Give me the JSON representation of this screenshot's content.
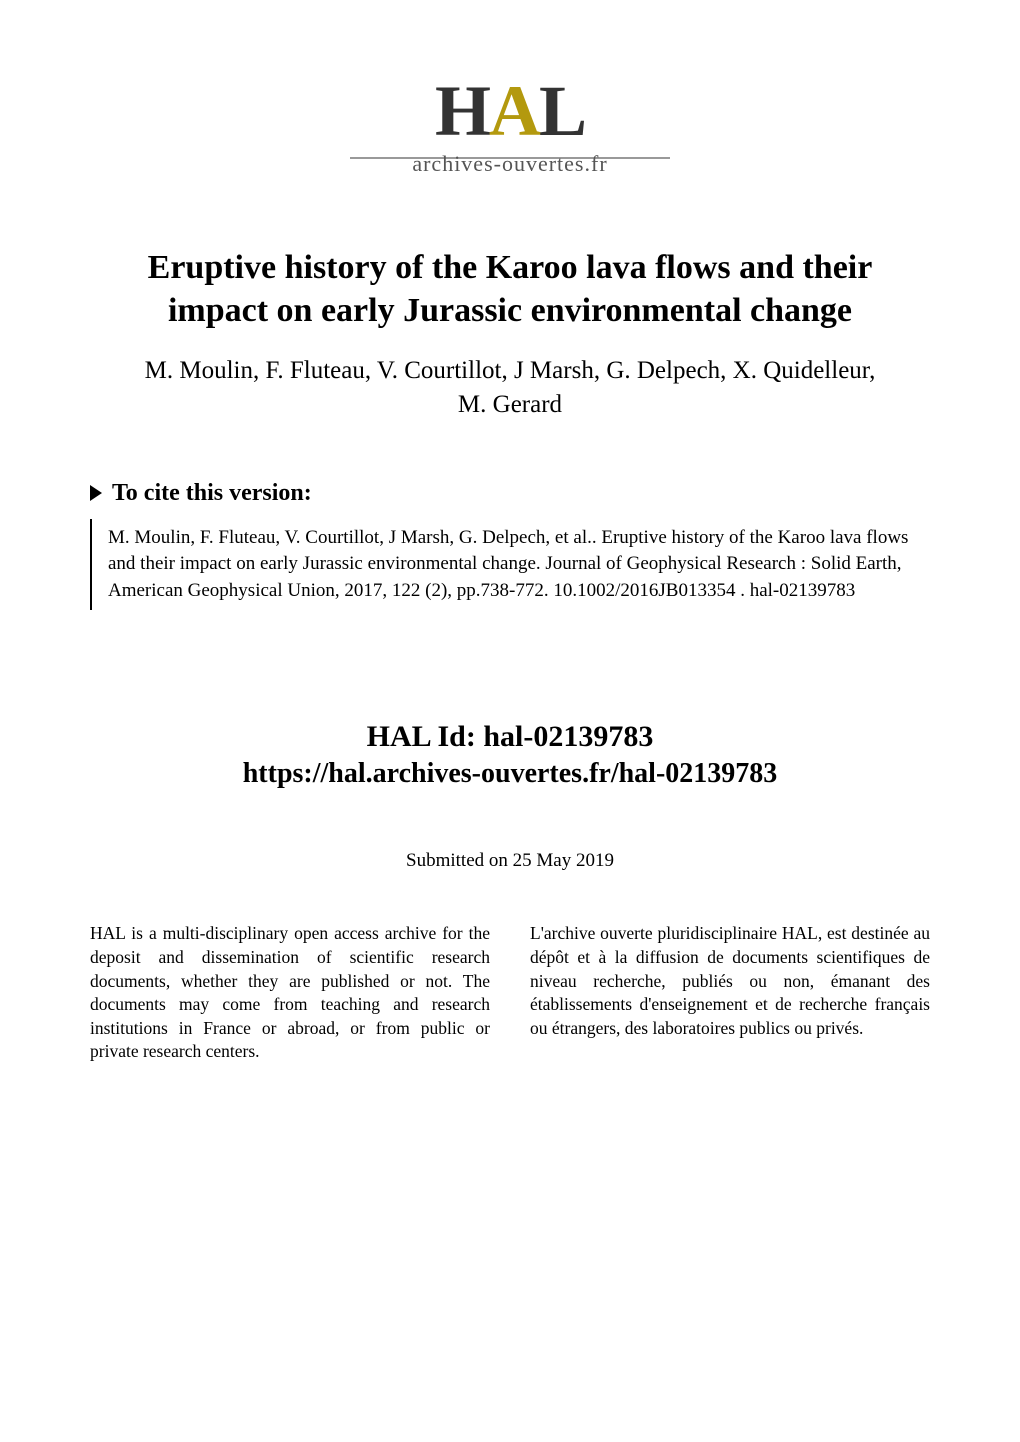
{
  "logo": {
    "text_prefix": "H",
    "text_accent": "A",
    "text_suffix": "L",
    "subtitle": "archives-ouvertes.fr"
  },
  "title": "Eruptive history of the Karoo lava flows and their impact on early Jurassic environmental change",
  "authors": "M. Moulin, F. Fluteau, V. Courtillot, J Marsh, G. Delpech, X. Quidelleur, M. Gerard",
  "cite": {
    "heading": "To cite this version:",
    "text": "M. Moulin, F. Fluteau, V. Courtillot, J Marsh, G. Delpech, et al.. Eruptive history of the Karoo lava flows and their impact on early Jurassic environmental change. Journal of Geophysical Research : Solid Earth, American Geophysical Union, 2017, 122 (2), pp.738-772. ",
    "doi": "10.1002/2016JB013354",
    "suffix": " . ",
    "halid_inline": "hal-02139783"
  },
  "hal": {
    "id_label": "HAL Id: ",
    "id": "hal-02139783",
    "url": "https://hal.archives-ouvertes.fr/hal-02139783"
  },
  "submitted": "Submitted on 25 May 2019",
  "columns": {
    "left": "HAL is a multi-disciplinary open access archive for the deposit and dissemination of scientific research documents, whether they are published or not. The documents may come from teaching and research institutions in France or abroad, or from public or private research centers.",
    "right": "L'archive ouverte pluridisciplinaire HAL, est destinée au dépôt et à la diffusion de documents scientifiques de niveau recherche, publiés ou non, émanant des établissements d'enseignement et de recherche français ou étrangers, des laboratoires publics ou privés."
  },
  "colors": {
    "background": "#ffffff",
    "text": "#000000",
    "logo_accent": "#b3990e",
    "logo_main": "#333333",
    "logo_sub": "#555555",
    "rule": "#999999"
  },
  "typography": {
    "title_fontsize": 34,
    "authors_fontsize": 25,
    "cite_heading_fontsize": 24,
    "citation_fontsize": 19,
    "halid_title_fontsize": 30,
    "halid_url_fontsize": 28,
    "submitted_fontsize": 19,
    "column_fontsize": 17.5,
    "logo_fontsize": 72,
    "logo_sub_fontsize": 22
  }
}
